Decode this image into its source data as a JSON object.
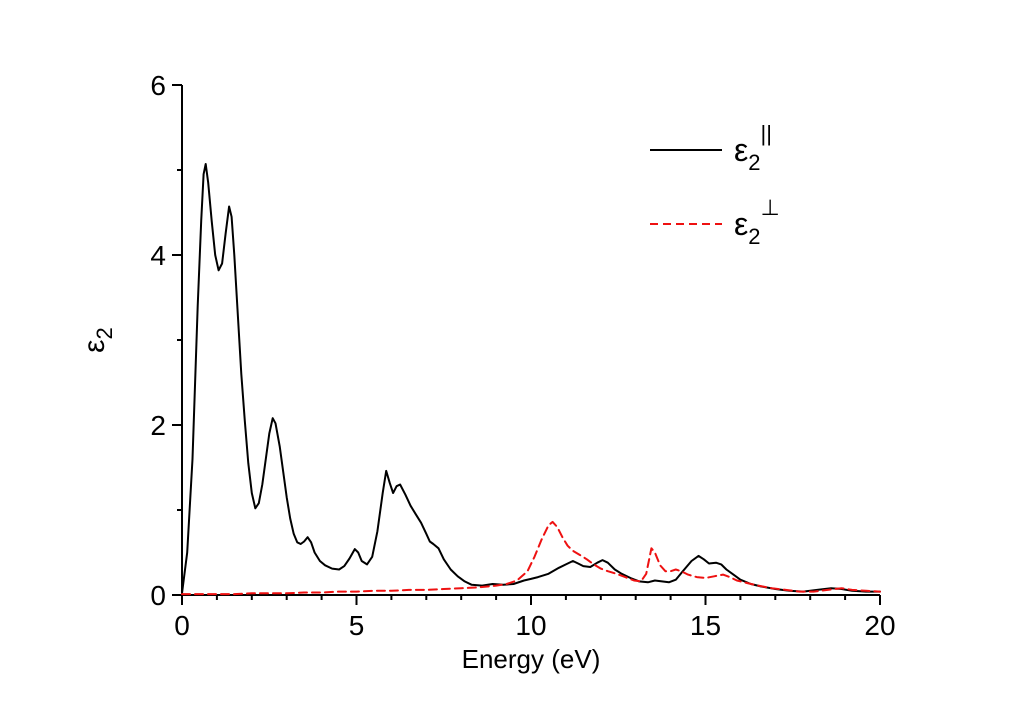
{
  "figure": {
    "background": "#ffffff"
  },
  "chart_data": {
    "type": "line",
    "title": "",
    "xlabel": "Energy (eV)",
    "ylabel_base": "ε",
    "ylabel_sub": "2",
    "xlim": [
      0,
      20
    ],
    "ylim": [
      0,
      6
    ],
    "x_major_ticks": [
      0,
      5,
      10,
      15,
      20
    ],
    "x_minor_step": 1,
    "y_major_ticks": [
      0,
      2,
      4,
      6
    ],
    "y_minor_step": 1,
    "grid": false,
    "legend_position": "upper-right-inside",
    "axis_color": "#000000",
    "series": [
      {
        "name": "epsilon2-parallel",
        "label_base": "ε",
        "label_sub": "2",
        "label_sup": "||",
        "color": "#000000",
        "style": "solid",
        "points": [
          [
            0,
            0.02
          ],
          [
            0.15,
            0.5
          ],
          [
            0.3,
            1.6
          ],
          [
            0.45,
            3.4
          ],
          [
            0.55,
            4.4
          ],
          [
            0.62,
            4.95
          ],
          [
            0.68,
            5.07
          ],
          [
            0.75,
            4.85
          ],
          [
            0.85,
            4.4
          ],
          [
            0.95,
            4.0
          ],
          [
            1.05,
            3.82
          ],
          [
            1.15,
            3.9
          ],
          [
            1.25,
            4.25
          ],
          [
            1.35,
            4.57
          ],
          [
            1.42,
            4.45
          ],
          [
            1.5,
            4.0
          ],
          [
            1.6,
            3.3
          ],
          [
            1.7,
            2.6
          ],
          [
            1.8,
            2.05
          ],
          [
            1.9,
            1.55
          ],
          [
            2.0,
            1.2
          ],
          [
            2.1,
            1.02
          ],
          [
            2.2,
            1.08
          ],
          [
            2.3,
            1.3
          ],
          [
            2.4,
            1.6
          ],
          [
            2.5,
            1.9
          ],
          [
            2.6,
            2.08
          ],
          [
            2.68,
            2.02
          ],
          [
            2.8,
            1.75
          ],
          [
            2.9,
            1.45
          ],
          [
            3.0,
            1.15
          ],
          [
            3.1,
            0.9
          ],
          [
            3.2,
            0.72
          ],
          [
            3.3,
            0.62
          ],
          [
            3.4,
            0.6
          ],
          [
            3.5,
            0.63
          ],
          [
            3.6,
            0.68
          ],
          [
            3.7,
            0.62
          ],
          [
            3.8,
            0.5
          ],
          [
            3.95,
            0.4
          ],
          [
            4.1,
            0.35
          ],
          [
            4.3,
            0.31
          ],
          [
            4.5,
            0.3
          ],
          [
            4.65,
            0.34
          ],
          [
            4.8,
            0.43
          ],
          [
            4.95,
            0.54
          ],
          [
            5.05,
            0.5
          ],
          [
            5.15,
            0.4
          ],
          [
            5.3,
            0.36
          ],
          [
            5.45,
            0.45
          ],
          [
            5.6,
            0.75
          ],
          [
            5.75,
            1.2
          ],
          [
            5.85,
            1.46
          ],
          [
            5.95,
            1.32
          ],
          [
            6.05,
            1.2
          ],
          [
            6.15,
            1.28
          ],
          [
            6.25,
            1.3
          ],
          [
            6.4,
            1.18
          ],
          [
            6.55,
            1.05
          ],
          [
            6.7,
            0.95
          ],
          [
            6.85,
            0.85
          ],
          [
            7.0,
            0.72
          ],
          [
            7.1,
            0.63
          ],
          [
            7.2,
            0.6
          ],
          [
            7.35,
            0.55
          ],
          [
            7.5,
            0.42
          ],
          [
            7.7,
            0.3
          ],
          [
            7.9,
            0.22
          ],
          [
            8.1,
            0.16
          ],
          [
            8.3,
            0.12
          ],
          [
            8.6,
            0.11
          ],
          [
            8.9,
            0.13
          ],
          [
            9.2,
            0.12
          ],
          [
            9.5,
            0.13
          ],
          [
            9.8,
            0.17
          ],
          [
            10.0,
            0.19
          ],
          [
            10.2,
            0.21
          ],
          [
            10.5,
            0.25
          ],
          [
            10.8,
            0.32
          ],
          [
            11.0,
            0.36
          ],
          [
            11.2,
            0.4
          ],
          [
            11.35,
            0.37
          ],
          [
            11.5,
            0.34
          ],
          [
            11.7,
            0.33
          ],
          [
            11.9,
            0.38
          ],
          [
            12.05,
            0.41
          ],
          [
            12.2,
            0.38
          ],
          [
            12.4,
            0.3
          ],
          [
            12.6,
            0.25
          ],
          [
            12.85,
            0.2
          ],
          [
            13.1,
            0.16
          ],
          [
            13.35,
            0.15
          ],
          [
            13.55,
            0.17
          ],
          [
            13.75,
            0.16
          ],
          [
            13.95,
            0.15
          ],
          [
            14.15,
            0.18
          ],
          [
            14.35,
            0.28
          ],
          [
            14.6,
            0.4
          ],
          [
            14.8,
            0.46
          ],
          [
            14.95,
            0.42
          ],
          [
            15.1,
            0.37
          ],
          [
            15.3,
            0.38
          ],
          [
            15.45,
            0.36
          ],
          [
            15.6,
            0.3
          ],
          [
            15.8,
            0.24
          ],
          [
            16.0,
            0.18
          ],
          [
            16.3,
            0.13
          ],
          [
            16.6,
            0.1
          ],
          [
            17.0,
            0.07
          ],
          [
            17.4,
            0.05
          ],
          [
            17.8,
            0.04
          ],
          [
            18.2,
            0.06
          ],
          [
            18.6,
            0.08
          ],
          [
            18.9,
            0.07
          ],
          [
            19.2,
            0.05
          ],
          [
            19.6,
            0.04
          ],
          [
            20.0,
            0.04
          ]
        ]
      },
      {
        "name": "epsilon2-perpendicular",
        "label_base": "ε",
        "label_sub": "2",
        "label_sup": "⊥",
        "color": "#ee1111",
        "style": "dashed",
        "points": [
          [
            0,
            0.01
          ],
          [
            0.5,
            0.01
          ],
          [
            1.0,
            0.01
          ],
          [
            1.5,
            0.01
          ],
          [
            2.0,
            0.02
          ],
          [
            2.5,
            0.02
          ],
          [
            3.0,
            0.02
          ],
          [
            3.5,
            0.03
          ],
          [
            4.0,
            0.03
          ],
          [
            4.5,
            0.04
          ],
          [
            5.0,
            0.04
          ],
          [
            5.5,
            0.05
          ],
          [
            6.0,
            0.05
          ],
          [
            6.5,
            0.06
          ],
          [
            7.0,
            0.06
          ],
          [
            7.5,
            0.07
          ],
          [
            8.0,
            0.08
          ],
          [
            8.5,
            0.09
          ],
          [
            9.0,
            0.11
          ],
          [
            9.3,
            0.13
          ],
          [
            9.6,
            0.17
          ],
          [
            9.9,
            0.28
          ],
          [
            10.1,
            0.45
          ],
          [
            10.3,
            0.65
          ],
          [
            10.5,
            0.82
          ],
          [
            10.62,
            0.86
          ],
          [
            10.75,
            0.8
          ],
          [
            10.9,
            0.68
          ],
          [
            11.05,
            0.58
          ],
          [
            11.2,
            0.52
          ],
          [
            11.4,
            0.47
          ],
          [
            11.6,
            0.42
          ],
          [
            11.8,
            0.36
          ],
          [
            12.0,
            0.31
          ],
          [
            12.2,
            0.28
          ],
          [
            12.45,
            0.25
          ],
          [
            12.7,
            0.21
          ],
          [
            12.95,
            0.17
          ],
          [
            13.15,
            0.16
          ],
          [
            13.3,
            0.25
          ],
          [
            13.45,
            0.55
          ],
          [
            13.55,
            0.5
          ],
          [
            13.7,
            0.35
          ],
          [
            13.85,
            0.28
          ],
          [
            14.0,
            0.28
          ],
          [
            14.15,
            0.3
          ],
          [
            14.3,
            0.28
          ],
          [
            14.5,
            0.24
          ],
          [
            14.75,
            0.21
          ],
          [
            15.0,
            0.2
          ],
          [
            15.25,
            0.22
          ],
          [
            15.5,
            0.24
          ],
          [
            15.7,
            0.21
          ],
          [
            15.9,
            0.17
          ],
          [
            16.2,
            0.14
          ],
          [
            16.5,
            0.11
          ],
          [
            16.9,
            0.08
          ],
          [
            17.3,
            0.06
          ],
          [
            17.7,
            0.04
          ],
          [
            18.1,
            0.04
          ],
          [
            18.5,
            0.06
          ],
          [
            18.9,
            0.08
          ],
          [
            19.2,
            0.06
          ],
          [
            19.6,
            0.05
          ],
          [
            20.0,
            0.04
          ]
        ]
      }
    ]
  }
}
